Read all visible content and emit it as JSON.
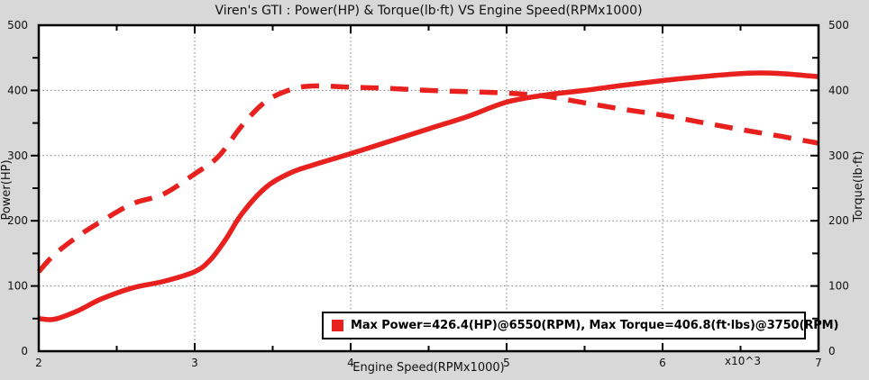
{
  "figure": {
    "title": "Viren's GTI : Power(HP) & Torque(lb·ft) VS Engine Speed(RPMx1000)",
    "xlabel": "Engine Speed(RPMx1000)",
    "ylabel_left": "Power(HP)",
    "ylabel_right": "Torque(lb·ft)",
    "axis_multiplier": "x10^3",
    "bg_color": "#d8d8d8",
    "plot_bg_color": "#ffffff",
    "line_color": "#e8201e",
    "legend": {
      "text": "Max Power=426.4(HP)@6550(RPM), Max Torque=406.8(ft·lbs)@3750(RPM)",
      "marker_icon": "red-square-icon",
      "marker_color": "#e8201e",
      "position": "bottom-right"
    }
  },
  "chart_data": {
    "type": "line",
    "title": "Viren's GTI : Power(HP) & Torque(lb·ft) VS Engine Speed(RPMx1000)",
    "xlabel": "Engine Speed(RPMx1000)",
    "ylabel": "Power(HP)",
    "ylabel_right": "Torque(lb ft)",
    "xlim": [
      2,
      7
    ],
    "ylim": [
      0,
      500
    ],
    "ylim_right": [
      0,
      500
    ],
    "x_ticks": [
      2,
      3,
      4,
      5,
      6,
      7
    ],
    "x_minor_tick_step": 0.5,
    "y_ticks": [
      0,
      100,
      200,
      300,
      400,
      500
    ],
    "y_minor_tick_step": 50,
    "grid": true,
    "grid_style": "dotted",
    "legend_position": "bottom-right",
    "annotations": {
      "max_power_hp": 426.4,
      "max_power_rpm": 6550,
      "max_torque_ftlbs": 406.8,
      "max_torque_rpm": 3750
    },
    "series": [
      {
        "name": "Power (HP)",
        "axis": "left",
        "style": "solid",
        "color": "#e8201e",
        "x": [
          2.0,
          2.1,
          2.25,
          2.4,
          2.6,
          2.8,
          3.0,
          3.1,
          3.2,
          3.3,
          3.45,
          3.6,
          3.75,
          4.0,
          4.25,
          4.5,
          4.75,
          5.0,
          5.25,
          5.5,
          5.75,
          6.0,
          6.25,
          6.55,
          6.75,
          7.0
        ],
        "y": [
          50,
          49,
          62,
          80,
          97,
          107,
          122,
          140,
          172,
          210,
          250,
          272,
          285,
          303,
          322,
          341,
          360,
          382,
          393,
          400,
          408,
          415,
          421,
          426.4,
          426,
          421
        ]
      },
      {
        "name": "Torque (lb·ft)",
        "axis": "right",
        "style": "dashed",
        "color": "#e8201e",
        "x": [
          2.0,
          2.1,
          2.25,
          2.4,
          2.6,
          2.8,
          3.0,
          3.15,
          3.3,
          3.45,
          3.6,
          3.75,
          4.0,
          4.25,
          4.5,
          4.75,
          5.0,
          5.25,
          5.5,
          5.75,
          6.0,
          6.25,
          6.5,
          6.75,
          7.0
        ],
        "y": [
          122,
          148,
          176,
          199,
          226,
          241,
          272,
          298,
          345,
          382,
          400,
          406.8,
          405,
          403,
          400,
          398,
          396,
          391,
          381,
          371,
          362,
          351,
          340,
          330,
          319
        ]
      }
    ]
  }
}
